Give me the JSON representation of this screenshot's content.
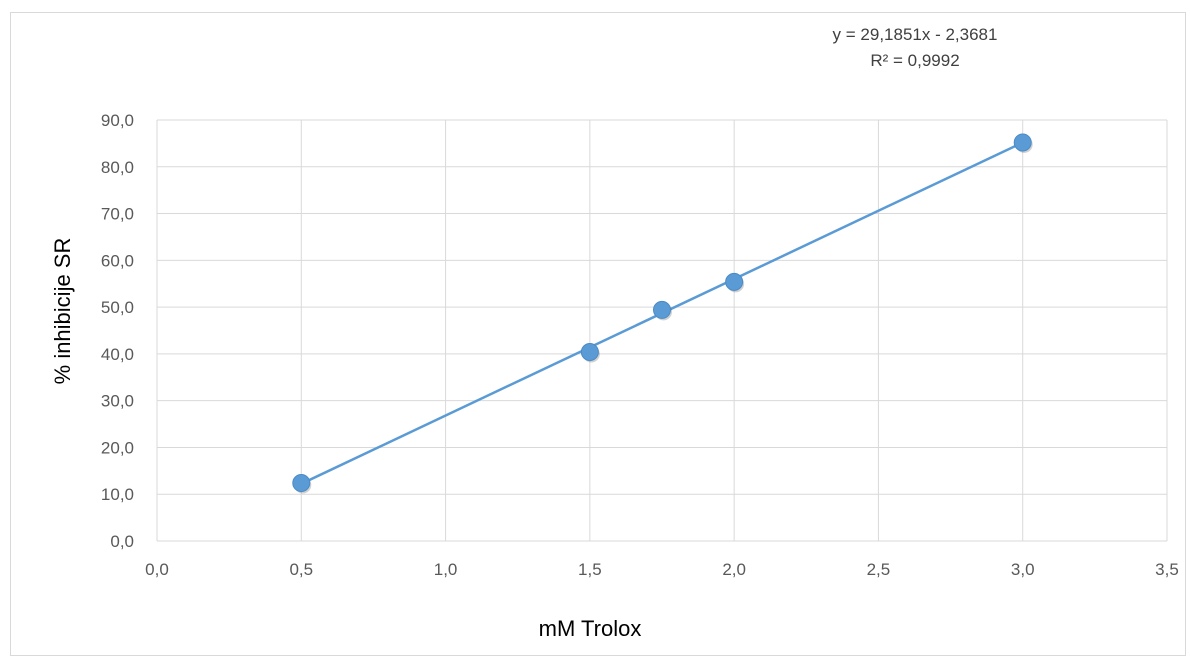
{
  "chart_data": {
    "type": "scatter",
    "xlabel": "mM Trolox",
    "ylabel": "% inhibicije  SR",
    "xlim": [
      0,
      3.5
    ],
    "ylim": [
      0,
      90
    ],
    "x_ticks": [
      "0,0",
      "0,5",
      "1,0",
      "1,5",
      "2,0",
      "2,5",
      "3,0",
      "3,5"
    ],
    "y_ticks": [
      "0,0",
      "10,0",
      "20,0",
      "30,0",
      "40,0",
      "50,0",
      "60,0",
      "70,0",
      "80,0",
      "90,0"
    ],
    "grid": true,
    "series": [
      {
        "x": [
          0.5,
          1.5,
          1.75,
          2.0,
          3.0
        ],
        "y": [
          12.4,
          40.4,
          49.4,
          55.4,
          85.2
        ]
      }
    ],
    "trendline": {
      "slope": 29.1851,
      "intercept": -2.3681,
      "x_range": [
        0.5,
        3.0
      ],
      "equation": "y = 29,1851x - 2,3681",
      "r2": "R² = 0,9992"
    },
    "colors": {
      "marker": "#5b9bd5",
      "line": "#5b9bd5",
      "grid": "#d9d9d9"
    }
  }
}
